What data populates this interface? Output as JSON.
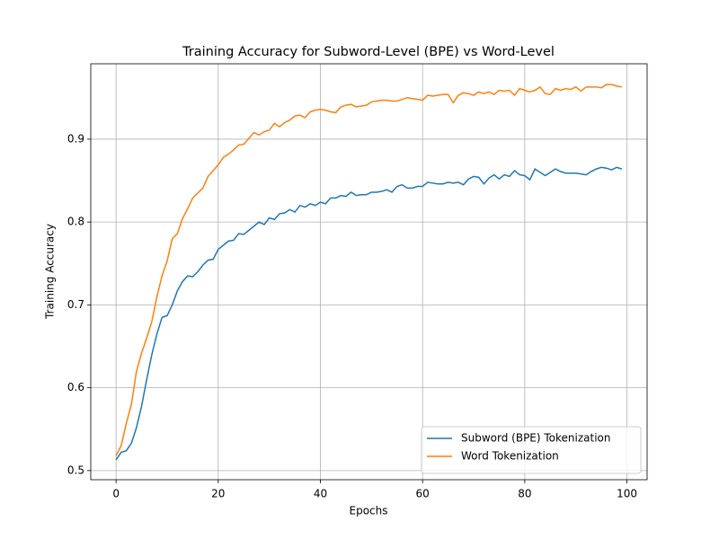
{
  "chart_data": {
    "type": "line",
    "title": "Training Accuracy for Subword-Level (BPE) vs Word-Level",
    "x_label": "Epochs",
    "y_label": "Training Accuracy",
    "x": [
      0,
      1,
      2,
      3,
      4,
      5,
      6,
      7,
      8,
      9,
      10,
      11,
      12,
      13,
      14,
      15,
      16,
      17,
      18,
      19,
      20,
      21,
      22,
      23,
      24,
      25,
      26,
      27,
      28,
      29,
      30,
      31,
      32,
      33,
      34,
      35,
      36,
      37,
      38,
      39,
      40,
      41,
      42,
      43,
      44,
      45,
      46,
      47,
      48,
      49,
      50,
      51,
      52,
      53,
      54,
      55,
      56,
      57,
      58,
      59,
      60,
      61,
      62,
      63,
      64,
      65,
      66,
      67,
      68,
      69,
      70,
      71,
      72,
      73,
      74,
      75,
      76,
      77,
      78,
      79,
      80,
      81,
      82,
      83,
      84,
      85,
      86,
      87,
      88,
      89,
      90,
      91,
      92,
      93,
      94,
      95,
      96,
      97,
      98,
      99
    ],
    "series": [
      {
        "name": "Subword (BPE) Tokenization",
        "color": "#1f77b4",
        "values": [
          0.513,
          0.522,
          0.524,
          0.533,
          0.552,
          0.578,
          0.61,
          0.64,
          0.665,
          0.685,
          0.687,
          0.7,
          0.717,
          0.728,
          0.735,
          0.734,
          0.74,
          0.748,
          0.754,
          0.755,
          0.767,
          0.772,
          0.777,
          0.778,
          0.786,
          0.785,
          0.79,
          0.795,
          0.8,
          0.797,
          0.805,
          0.803,
          0.81,
          0.811,
          0.815,
          0.812,
          0.82,
          0.818,
          0.822,
          0.82,
          0.824,
          0.822,
          0.829,
          0.829,
          0.832,
          0.831,
          0.836,
          0.832,
          0.833,
          0.833,
          0.836,
          0.836,
          0.837,
          0.839,
          0.836,
          0.843,
          0.845,
          0.841,
          0.841,
          0.843,
          0.843,
          0.848,
          0.847,
          0.846,
          0.846,
          0.848,
          0.847,
          0.848,
          0.845,
          0.852,
          0.855,
          0.854,
          0.846,
          0.853,
          0.857,
          0.852,
          0.857,
          0.855,
          0.862,
          0.857,
          0.856,
          0.851,
          0.864,
          0.86,
          0.856,
          0.86,
          0.864,
          0.861,
          0.859,
          0.859,
          0.859,
          0.858,
          0.857,
          0.861,
          0.864,
          0.866,
          0.865,
          0.863,
          0.866,
          0.864
        ]
      },
      {
        "name": "Word Tokenization",
        "color": "#ff7f0e",
        "values": [
          0.518,
          0.53,
          0.557,
          0.58,
          0.62,
          0.642,
          0.66,
          0.68,
          0.71,
          0.735,
          0.753,
          0.78,
          0.786,
          0.804,
          0.816,
          0.829,
          0.835,
          0.841,
          0.855,
          0.862,
          0.869,
          0.878,
          0.882,
          0.887,
          0.893,
          0.894,
          0.901,
          0.908,
          0.905,
          0.909,
          0.911,
          0.919,
          0.915,
          0.92,
          0.923,
          0.928,
          0.929,
          0.926,
          0.933,
          0.935,
          0.936,
          0.935,
          0.933,
          0.932,
          0.939,
          0.941,
          0.942,
          0.939,
          0.94,
          0.941,
          0.945,
          0.946,
          0.947,
          0.947,
          0.946,
          0.946,
          0.948,
          0.95,
          0.949,
          0.948,
          0.947,
          0.953,
          0.952,
          0.953,
          0.954,
          0.954,
          0.944,
          0.953,
          0.956,
          0.955,
          0.953,
          0.957,
          0.955,
          0.957,
          0.954,
          0.959,
          0.958,
          0.959,
          0.953,
          0.961,
          0.959,
          0.957,
          0.959,
          0.963,
          0.955,
          0.954,
          0.961,
          0.959,
          0.961,
          0.96,
          0.963,
          0.958,
          0.963,
          0.963,
          0.963,
          0.962,
          0.966,
          0.966,
          0.964,
          0.963
        ]
      }
    ],
    "xlim": [
      -4.95,
      103.95
    ],
    "ylim": [
      0.489,
      0.991
    ],
    "xticks": [
      0,
      20,
      40,
      60,
      80,
      100
    ],
    "yticks": [
      0.5,
      0.6,
      0.7,
      0.8,
      0.9
    ],
    "grid": true,
    "legend": "lower right"
  }
}
